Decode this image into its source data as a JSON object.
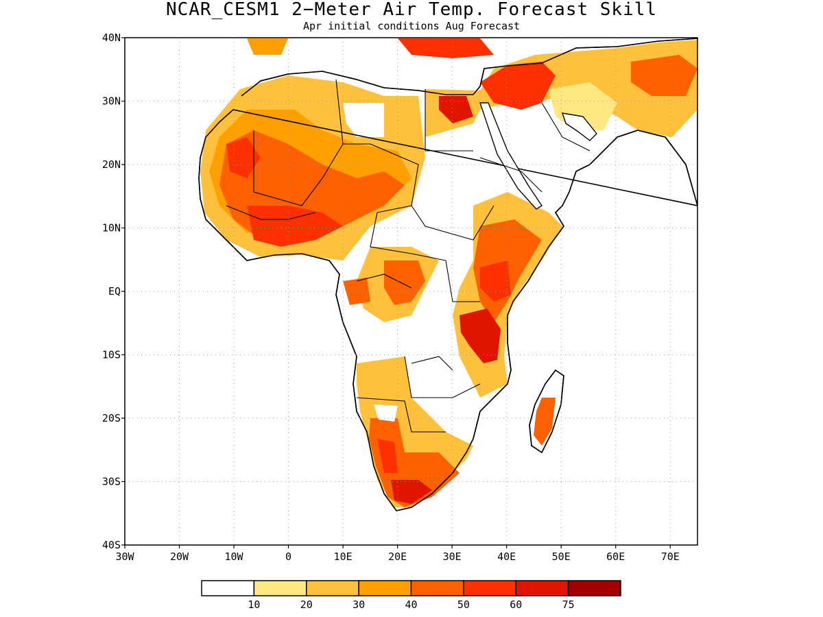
{
  "title": "NCAR_CESM1 2−Meter Air Temp. Forecast Skill",
  "subtitle": "Apr initial conditions  Aug Forecast",
  "map": {
    "lat_labels": [
      "40N",
      "30N",
      "20N",
      "10N",
      "EQ",
      "10S",
      "20S",
      "30S",
      "40S"
    ],
    "lon_labels": [
      "30W",
      "20W",
      "10W",
      "0",
      "10E",
      "20E",
      "30E",
      "40E",
      "50E",
      "60E",
      "70E"
    ],
    "lat_range": [
      -40,
      40
    ],
    "lon_range": [
      -30,
      75
    ],
    "grid": "dotted",
    "region": "Africa and Middle East"
  },
  "colorbar": {
    "colors": [
      "#ffffff",
      "#ffe880",
      "#ffc03c",
      "#ffa000",
      "#ff6000",
      "#ff3000",
      "#e11400",
      "#a50000"
    ],
    "boundaries": [
      "10",
      "20",
      "30",
      "40",
      "50",
      "60",
      "75"
    ]
  }
}
